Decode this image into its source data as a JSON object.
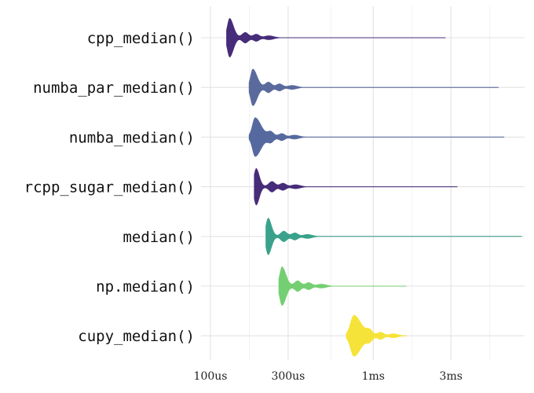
{
  "chart_data": {
    "type": "violin",
    "x_scale": "log",
    "x_unit": "seconds",
    "xlim": [
      0.0001,
      0.0085
    ],
    "x_ticks": [
      {
        "value": 0.0001,
        "label": "100us"
      },
      {
        "value": 0.0003,
        "label": "300us"
      },
      {
        "value": 0.001,
        "label": "1ms"
      },
      {
        "value": 0.003,
        "label": "3ms"
      }
    ],
    "grid": true,
    "legend": "none",
    "series": [
      {
        "name": "cpp_median()",
        "color": "#472c7a",
        "min": 0.000125,
        "mode": 0.000131,
        "max": 0.0028,
        "mode_width": 0.9
      },
      {
        "name": "numba_par_median()",
        "color": "#5a6a9c",
        "min": 0.000172,
        "mode": 0.000182,
        "max": 0.0059,
        "mode_width": 0.85
      },
      {
        "name": "numba_median()",
        "color": "#56699f",
        "min": 0.000172,
        "mode": 0.000188,
        "max": 0.0064,
        "mode_width": 0.9
      },
      {
        "name": "rcpp_sugar_median()",
        "color": "#472c7a",
        "min": 0.000185,
        "mode": 0.000191,
        "max": 0.0033,
        "mode_width": 0.85
      },
      {
        "name": "median()",
        "color": "#3aa28b",
        "min": 0.000218,
        "mode": 0.000226,
        "max": 0.0082,
        "mode_width": 0.85
      },
      {
        "name": "np.median()",
        "color": "#74cf72",
        "min": 0.000262,
        "mode": 0.000275,
        "max": 0.0016,
        "mode_width": 0.9
      },
      {
        "name": "cupy_median()",
        "color": "#f6e33a",
        "min": 0.00068,
        "mode": 0.00076,
        "max": 0.0016,
        "mode_width": 0.95
      }
    ]
  }
}
